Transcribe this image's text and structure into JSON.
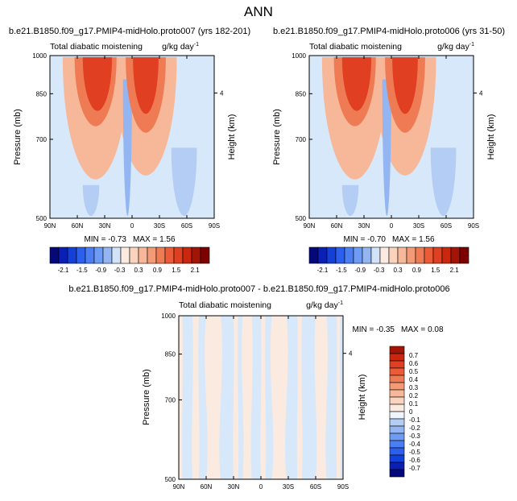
{
  "title": "ANN",
  "colors": {
    "field_background": "#d7e8fa",
    "negative_scale": [
      "#05087a",
      "#0a1fb4",
      "#1240d8",
      "#2c5fec",
      "#4b7ef2",
      "#6e9bf3",
      "#93b6f3",
      "#b4cdf5",
      "#d2e3f8",
      "#eef4fb"
    ],
    "positive_scale": [
      "#fbeae0",
      "#f9d3bd",
      "#f7b89a",
      "#f39a77",
      "#ef7b55",
      "#ea5b38",
      "#e03f21",
      "#c9280f",
      "#a41405",
      "#7d0000"
    ]
  },
  "chart_data": [
    {
      "type": "heatmap",
      "panel": "upper-left",
      "title": "b.e21.B1850.f09_g17.PMIP4-midHolo.proto007 (yrs 182-201)",
      "left_string": "Total diabatic moistening",
      "right_string": "g/kg day",
      "right_string_superscript": "-1",
      "xlabel": "",
      "ylabel": "Pressure (mb)",
      "y2label": "Height (km)",
      "x_ticks": [
        "90N",
        "60N",
        "30N",
        "0",
        "30S",
        "60S",
        "90S"
      ],
      "y_ticks": [
        "500",
        "700",
        "850",
        "1000"
      ],
      "y2_ticks": [
        "4"
      ],
      "xlim": [
        90,
        -90
      ],
      "ylim": [
        1000,
        500
      ],
      "min_label": "MIN = ",
      "min": "-0.73",
      "max_label": "MAX = ",
      "max": "1.56",
      "colorbar_labels": [
        "-2.1",
        "-1.5",
        "-0.9",
        "-0.3",
        "0.3",
        "0.9",
        "1.5",
        "2.1"
      ],
      "features": [
        {
          "lat": 40,
          "p_top": 590,
          "p_bottom": 1000,
          "halfwidth": 36,
          "level": 2
        },
        {
          "lat": 40,
          "p_top": 740,
          "p_bottom": 1000,
          "halfwidth": 23,
          "level": 4
        },
        {
          "lat": 38,
          "p_top": 790,
          "p_bottom": 1000,
          "halfwidth": 16,
          "level": 6
        },
        {
          "lat": -15,
          "p_top": 600,
          "p_bottom": 1000,
          "halfwidth": 34,
          "level": 2
        },
        {
          "lat": -15,
          "p_top": 720,
          "p_bottom": 1000,
          "halfwidth": 22,
          "level": 4
        },
        {
          "lat": -15,
          "p_top": 780,
          "p_bottom": 1000,
          "halfwidth": 14,
          "level": 6
        },
        {
          "lat": 5,
          "p_top": 505,
          "p_bottom": 910,
          "halfwidth": 5,
          "level": -3
        },
        {
          "lat": 45,
          "p_top": 505,
          "p_bottom": 580,
          "halfwidth": 9,
          "level": -2
        },
        {
          "lat": -57,
          "p_top": 505,
          "p_bottom": 680,
          "halfwidth": 14,
          "level": -2
        }
      ]
    },
    {
      "type": "heatmap",
      "panel": "upper-right",
      "title": "b.e21.B1850.f09_g17.PMIP4-midHolo.proto006 (yrs 31-50)",
      "left_string": "Total diabatic moistening",
      "right_string": "g/kg day",
      "right_string_superscript": "-1",
      "xlabel": "",
      "ylabel": "Pressure (mb)",
      "y2label": "Height (km)",
      "x_ticks": [
        "90N",
        "60N",
        "30N",
        "0",
        "30S",
        "60S",
        "90S"
      ],
      "y_ticks": [
        "500",
        "700",
        "850",
        "1000"
      ],
      "y2_ticks": [
        "4"
      ],
      "xlim": [
        90,
        -90
      ],
      "ylim": [
        1000,
        500
      ],
      "min_label": "MIN = ",
      "min": "-0.70",
      "max_label": "MAX = ",
      "max": "1.56",
      "colorbar_labels": [
        "-2.1",
        "-1.5",
        "-0.9",
        "-0.3",
        "0.3",
        "0.9",
        "1.5",
        "2.1"
      ],
      "features": [
        {
          "lat": 40,
          "p_top": 590,
          "p_bottom": 1000,
          "halfwidth": 36,
          "level": 2
        },
        {
          "lat": 40,
          "p_top": 740,
          "p_bottom": 1000,
          "halfwidth": 23,
          "level": 4
        },
        {
          "lat": 38,
          "p_top": 790,
          "p_bottom": 1000,
          "halfwidth": 16,
          "level": 6
        },
        {
          "lat": -15,
          "p_top": 600,
          "p_bottom": 1000,
          "halfwidth": 34,
          "level": 2
        },
        {
          "lat": -15,
          "p_top": 720,
          "p_bottom": 1000,
          "halfwidth": 22,
          "level": 4
        },
        {
          "lat": -15,
          "p_top": 780,
          "p_bottom": 1000,
          "halfwidth": 14,
          "level": 6
        },
        {
          "lat": 5,
          "p_top": 505,
          "p_bottom": 910,
          "halfwidth": 5,
          "level": -3
        },
        {
          "lat": 45,
          "p_top": 505,
          "p_bottom": 580,
          "halfwidth": 9,
          "level": -2
        },
        {
          "lat": -57,
          "p_top": 505,
          "p_bottom": 680,
          "halfwidth": 14,
          "level": -2
        }
      ]
    },
    {
      "type": "heatmap",
      "panel": "difference",
      "title": "b.e21.B1850.f09_g17.PMIP4-midHolo.proto007 - b.e21.B1850.f09_g17.PMIP4-midHolo.proto006",
      "left_string": "Total diabatic moistening",
      "right_string": "g/kg day",
      "right_string_superscript": "-1",
      "xlabel": "",
      "ylabel": "Pressure (mb)",
      "y2label": "Height (km)",
      "x_ticks": [
        "90N",
        "60N",
        "30N",
        "0",
        "30S",
        "60S",
        "90S"
      ],
      "y_ticks": [
        "500",
        "700",
        "850",
        "1000"
      ],
      "y2_ticks": [
        "4"
      ],
      "xlim": [
        90,
        -90
      ],
      "ylim": [
        1000,
        500
      ],
      "min_label": "MIN = ",
      "min": "-0.35",
      "max_label": "MAX = ",
      "max": "0.08",
      "colorbar_labels": [
        "0.7",
        "0.6",
        "0.5",
        "0.4",
        "0.3",
        "0.2",
        "0.1",
        "0",
        "-0.1",
        "-0.2",
        "-0.3",
        "-0.4",
        "-0.5",
        "-0.6",
        "-0.7"
      ],
      "positive_bands": [
        {
          "lat_from": 90,
          "lat_to": 86
        },
        {
          "lat_from": 75,
          "lat_to": 68
        },
        {
          "lat_from": 60,
          "lat_to": 44
        },
        {
          "lat_from": 30,
          "lat_to": 25
        },
        {
          "lat_from": 20,
          "lat_to": 10
        },
        {
          "lat_from": 0,
          "lat_to": -5
        },
        {
          "lat_from": -12,
          "lat_to": -28
        },
        {
          "lat_from": -40,
          "lat_to": -45
        },
        {
          "lat_from": -60,
          "lat_to": -72
        },
        {
          "lat_from": -83,
          "lat_to": -87
        }
      ]
    }
  ]
}
